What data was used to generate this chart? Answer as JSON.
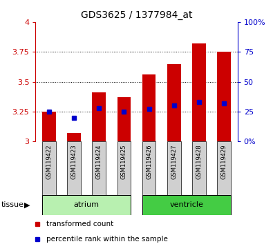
{
  "title": "GDS3625 / 1377984_at",
  "samples": [
    "GSM119422",
    "GSM119423",
    "GSM119424",
    "GSM119425",
    "GSM119426",
    "GSM119427",
    "GSM119428",
    "GSM119429"
  ],
  "transformed_counts": [
    3.25,
    3.07,
    3.41,
    3.37,
    3.56,
    3.65,
    3.82,
    3.75
  ],
  "percentile_ranks": [
    25,
    20,
    28,
    25,
    27,
    30,
    33,
    32
  ],
  "baseline": 3.0,
  "ylim_left": [
    3.0,
    4.0
  ],
  "ylim_right": [
    0,
    100
  ],
  "yticks_left": [
    3.0,
    3.25,
    3.5,
    3.75,
    4.0
  ],
  "yticks_right": [
    0,
    25,
    50,
    75,
    100
  ],
  "ytick_labels_left": [
    "3",
    "3.25",
    "3.5",
    "3.75",
    "4"
  ],
  "ytick_labels_right": [
    "0%",
    "25",
    "50",
    "75",
    "100%"
  ],
  "tissue_groups": [
    {
      "label": "atrium",
      "start": 0,
      "end": 3,
      "color": "#b8f0b0"
    },
    {
      "label": "ventricle",
      "start": 4,
      "end": 7,
      "color": "#44cc44"
    }
  ],
  "bar_color": "#cc0000",
  "percentile_color": "#0000cc",
  "bar_width": 0.55,
  "background_color": "#ffffff",
  "label_area_color": "#d0d0d0",
  "tissue_label": "tissue",
  "legend_items": [
    "transformed count",
    "percentile rank within the sample"
  ],
  "legend_colors": [
    "#cc0000",
    "#0000cc"
  ]
}
